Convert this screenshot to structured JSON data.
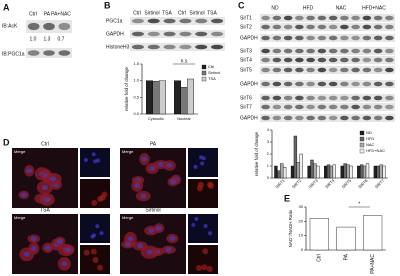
{
  "panels": {
    "A": {
      "label": "A",
      "lanes": [
        "Ctrl",
        "PA",
        "PA+NAC"
      ],
      "blots": [
        "IB:AcK",
        "IB:PGC1a"
      ],
      "quant": [
        "1.0",
        "1.3",
        "0.7"
      ]
    },
    "B": {
      "label": "B",
      "lanes": [
        "Ctrl",
        "Sirtinol",
        "TSA",
        "Ctrl",
        "Sirtinol",
        "TSA"
      ],
      "blots": [
        "PGC1a",
        "GAPDH",
        "HistoneH3"
      ]
    },
    "C": {
      "label": "C",
      "lanes": [
        "ND",
        "HFD",
        "NAC",
        "HFD+NAC"
      ],
      "blots": [
        "SirT1",
        "SirT2",
        "GAPDH",
        "SirT3",
        "SirT4",
        "SirT5",
        "GAPDH",
        "SirT6",
        "SirT7",
        "GAPDH"
      ]
    },
    "D": {
      "label": "D",
      "images": [
        {
          "title": "Ctrl",
          "inset": "Merge"
        },
        {
          "title": "PA",
          "inset": "Merge"
        },
        {
          "title": "TSA",
          "inset": "Merge"
        },
        {
          "title": "Sirtinol",
          "inset": "Merge"
        }
      ]
    },
    "E": {
      "label": "E"
    }
  },
  "chart_data": [
    {
      "type": "bar",
      "ylabel": "relative fold of change",
      "categories": [
        "Cytosolic",
        "Nuclear"
      ],
      "series": [
        {
          "name": "Ctrl",
          "color": "#222222",
          "values": [
            1.0,
            1.0
          ]
        },
        {
          "name": "Sirtinol",
          "color": "#777777",
          "values": [
            0.98,
            0.8
          ]
        },
        {
          "name": "TSA",
          "color": "#cccccc",
          "values": [
            1.0,
            1.05
          ]
        }
      ],
      "ylim": [
        0,
        1.5
      ],
      "yticks": [
        {
          "value": 0,
          "label": "0.0"
        },
        0.5,
        {
          "value": 1,
          "label": "1.0"
        },
        1.5
      ],
      "legend": "right",
      "annotations": [
        "n.s"
      ]
    },
    {
      "type": "bar",
      "ylabel": "relative fold of change",
      "categories": [
        "SIRT1",
        "SIRT2",
        "SIRT3",
        "SIRT4",
        "SIRT5",
        "SIRT6",
        "SIRT7"
      ],
      "series": [
        {
          "name": "ND",
          "color": "#222222",
          "values": [
            1.0,
            1.0,
            1.0,
            1.0,
            1.0,
            1.0,
            1.0
          ]
        },
        {
          "name": "HFD",
          "color": "#666666",
          "values": [
            0.6,
            3.5,
            1.5,
            1.1,
            1.2,
            1.1,
            1.0
          ]
        },
        {
          "name": "NAC",
          "color": "#aaaaaa",
          "values": [
            1.2,
            1.3,
            1.2,
            1.0,
            1.1,
            1.0,
            1.1
          ]
        },
        {
          "name": "HFD+NAC",
          "color": "#eeeeee",
          "values": [
            0.9,
            2.0,
            1.0,
            1.1,
            1.0,
            1.2,
            1.0
          ]
        }
      ],
      "ylim": [
        0,
        4
      ],
      "yticks": [
        0,
        1,
        2,
        3,
        4
      ],
      "legend": "upper right",
      "annotations": []
    },
    {
      "type": "bar",
      "ylabel": "NAD⁺/NADH Ratio",
      "categories": [
        "Ctrl",
        "PA",
        "PA+NAC"
      ],
      "values": [
        22,
        16,
        24
      ],
      "color": "#ffffff",
      "ylim": [
        0,
        30
      ],
      "yticks": [
        0,
        10,
        20,
        30
      ],
      "annotations": [
        "*"
      ]
    }
  ]
}
